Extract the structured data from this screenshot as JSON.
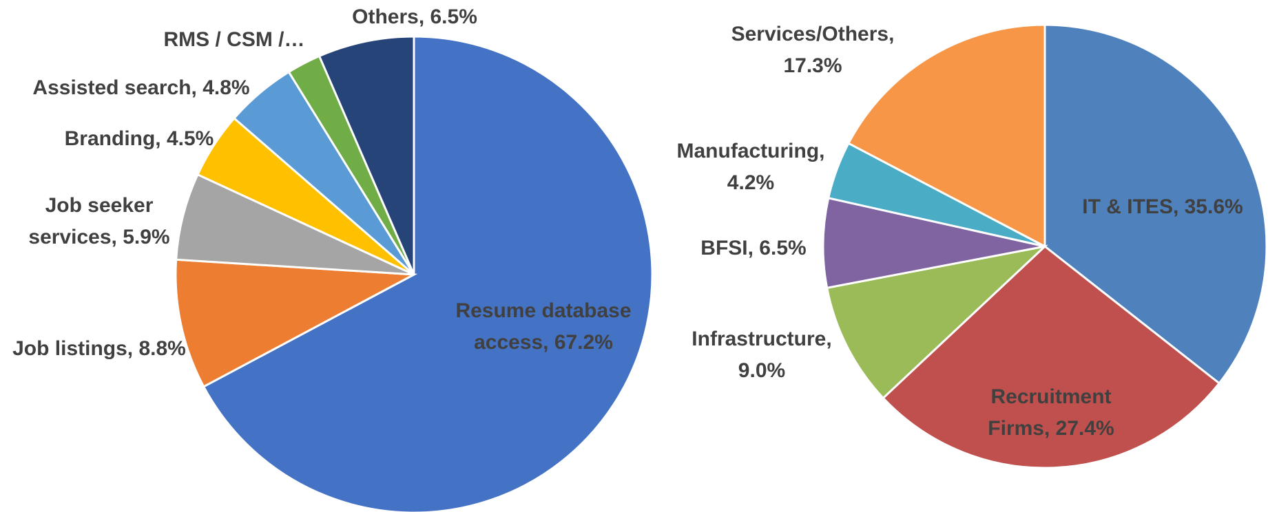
{
  "chart_data": [
    {
      "type": "pie",
      "values": [
        67.2,
        8.8,
        5.9,
        4.5,
        4.8,
        2.3,
        6.5
      ],
      "value_labels": [
        "Resume database\naccess, 67.2%",
        "Job listings, 8.8%",
        "Job seeker\nservices, 5.9%",
        "Branding, 4.5%",
        "Assisted search, 4.8%",
        "RMS / CSM /…",
        "Others, 6.5%"
      ],
      "colors": [
        "#4472c4",
        "#ed7d31",
        "#a5a5a5",
        "#ffc000",
        "#5b9bd5",
        "#70ad47",
        "#264478"
      ]
    },
    {
      "type": "pie",
      "values": [
        35.6,
        27.4,
        9.0,
        6.5,
        4.2,
        17.3
      ],
      "value_labels": [
        "IT & ITES, 35.6%",
        "Recruitment\nFirms, 27.4%",
        "Infrastructure,\n9.0%",
        "BFSI, 6.5%",
        "Manufacturing,\n4.2%",
        "Services/Others,\n17.3%"
      ],
      "colors": [
        "#4f81bd",
        "#c0504d",
        "#9bbb59",
        "#8064a2",
        "#4bacc6",
        "#f79646"
      ]
    }
  ]
}
